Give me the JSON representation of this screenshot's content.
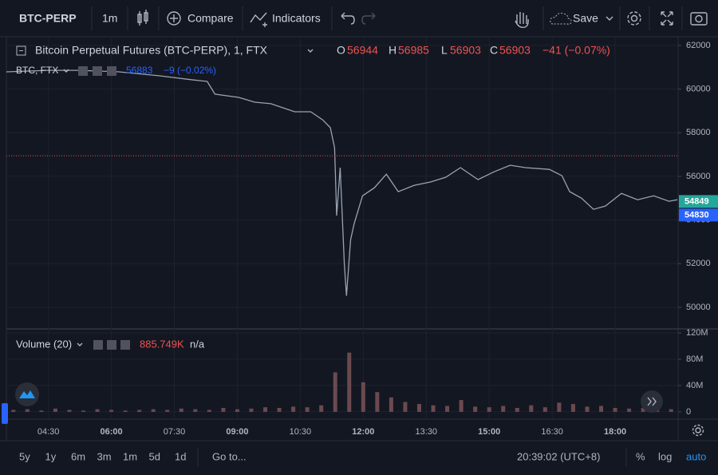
{
  "toolbar": {
    "symbol": "BTC-PERP",
    "interval": "1m",
    "compare": "Compare",
    "indicators": "Indicators",
    "save": "Save"
  },
  "legend": {
    "title": "Bitcoin Perpetual Futures (BTC-PERP), 1, FTX",
    "open_label": "O",
    "open": 56944,
    "high_label": "H",
    "high": 56985,
    "low_label": "L",
    "low": 56903,
    "close_label": "C",
    "close": 56903,
    "change": "−41 (−0.07%)"
  },
  "compare_legend": {
    "title": "BTC, FTX",
    "price": 56883,
    "change": "−9 (−0.02%)"
  },
  "volume_legend": {
    "title": "Volume (20)",
    "value": {
      "value": 885749,
      "label": "885.749K"
    },
    "extra": "n/a"
  },
  "chart_data": [
    {
      "type": "line",
      "color": "#9aa3b0",
      "x": [
        210,
        269,
        314,
        371,
        428,
        474,
        497,
        508,
        542,
        565,
        588,
        622,
        645,
        662,
        673,
        679,
        682,
        687,
        693,
        696,
        702,
        707,
        719,
        736,
        753,
        770,
        793,
        816,
        838,
        859,
        884,
        907,
        930,
        952,
        986,
        1004,
        1015,
        1032,
        1049,
        1066,
        1089,
        1112,
        1135,
        1157,
        1169
      ],
      "values": [
        60790,
        60860,
        60860,
        60790,
        60610,
        60430,
        60350,
        59770,
        59620,
        59400,
        59330,
        58960,
        58960,
        58590,
        58230,
        57310,
        54200,
        56400,
        52000,
        50530,
        53100,
        53830,
        55110,
        55480,
        56100,
        55300,
        55590,
        55740,
        55960,
        56400,
        55850,
        56210,
        56510,
        56400,
        56320,
        56030,
        55300,
        55000,
        54490,
        54640,
        55220,
        54930,
        55110,
        54860,
        54930
      ],
      "xlim": [
        210,
        1170
      ],
      "xticks": [
        {
          "value": 270,
          "label": "04:30"
        },
        {
          "value": 360,
          "label": "06:00"
        },
        {
          "value": 450,
          "label": "07:30"
        },
        {
          "value": 540,
          "label": "09:00"
        },
        {
          "value": 630,
          "label": "10:30"
        },
        {
          "value": 720,
          "label": "12:00"
        },
        {
          "value": 810,
          "label": "13:30"
        },
        {
          "value": 900,
          "label": "15:00"
        },
        {
          "value": 990,
          "label": "16:30"
        },
        {
          "value": 1080,
          "label": "18:00"
        }
      ],
      "ylim": [
        49010,
        62400
      ],
      "yticks": [
        50000,
        52000,
        54000,
        56000,
        58000,
        60000,
        62000
      ],
      "grid": true,
      "price_labels": [
        {
          "value": 54849,
          "color": "#26a69a"
        },
        {
          "value": 54830,
          "color": "#2962ff"
        }
      ]
    },
    {
      "type": "bar",
      "color": "#6b4a4f",
      "x": [
        220,
        240,
        260,
        280,
        300,
        320,
        340,
        360,
        380,
        400,
        420,
        440,
        460,
        480,
        500,
        520,
        540,
        560,
        580,
        600,
        620,
        640,
        660,
        680,
        700,
        720,
        740,
        760,
        780,
        800,
        820,
        840,
        860,
        880,
        900,
        920,
        940,
        960,
        980,
        1000,
        1020,
        1040,
        1060,
        1080,
        1100,
        1120,
        1140,
        1160
      ],
      "values": [
        3000000,
        4000000,
        2000000,
        5000000,
        3000000,
        2000000,
        4000000,
        3000000,
        2000000,
        3000000,
        4000000,
        3000000,
        5000000,
        4000000,
        3000000,
        6000000,
        4000000,
        5000000,
        7000000,
        6000000,
        8000000,
        7000000,
        10000000,
        60000000,
        90000000,
        45000000,
        30000000,
        22000000,
        15000000,
        12000000,
        10000000,
        9000000,
        18000000,
        8000000,
        7000000,
        9000000,
        6000000,
        10000000,
        7000000,
        14000000,
        12000000,
        8000000,
        9000000,
        6000000,
        5000000,
        6000000,
        5000000,
        4000000
      ],
      "xlim": [
        210,
        1170
      ],
      "ylim": [
        -11000000,
        126000000
      ],
      "yticks": [
        {
          "value": 0,
          "label": "0"
        },
        {
          "value": 40000000,
          "label": "40M"
        },
        {
          "value": 80000000,
          "label": "80M"
        },
        {
          "value": 120000000,
          "label": "120M"
        }
      ],
      "grid": true
    }
  ],
  "bottom_bar": {
    "ranges": [
      "5y",
      "1y",
      "6m",
      "3m",
      "1m",
      "5d",
      "1d"
    ],
    "goto": "Go to...",
    "clock": "20:39:02 (UTC+8)",
    "percent": "%",
    "log": "log",
    "auto": "auto"
  }
}
